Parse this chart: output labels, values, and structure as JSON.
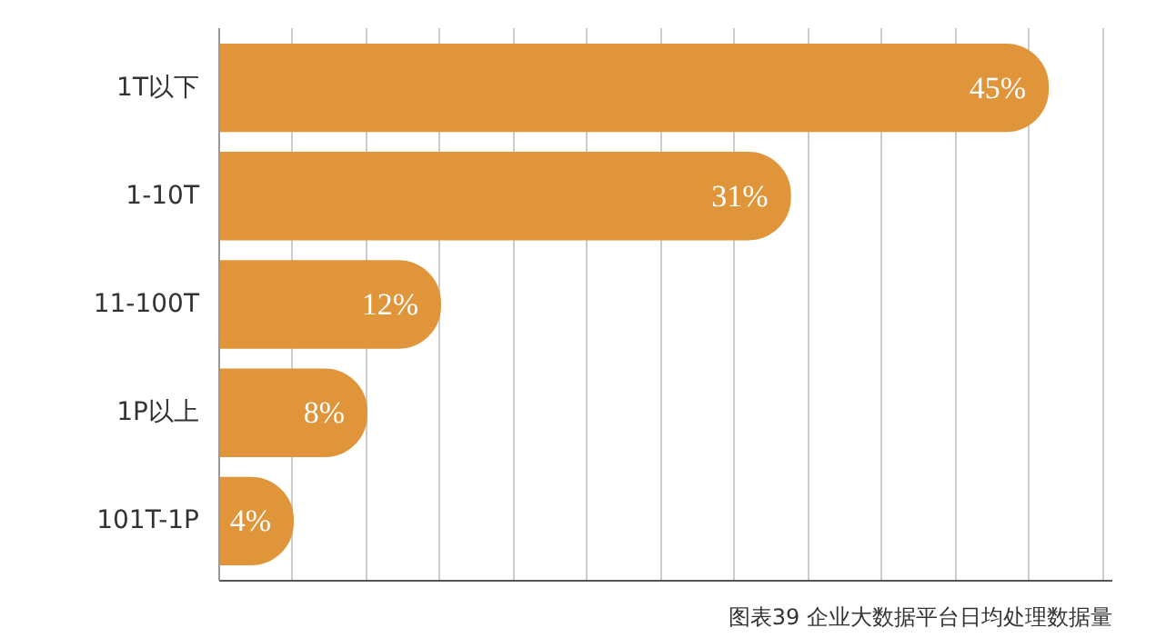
{
  "chart_data": {
    "type": "bar",
    "orientation": "horizontal",
    "categories": [
      "1T以下",
      "1-10T",
      "11-100T",
      "1P以上",
      "101T-1P"
    ],
    "values": [
      45,
      31,
      12,
      8,
      4
    ],
    "color": "#e0953a",
    "data_labels": true,
    "value_labels": [
      "45%",
      "31%",
      "12%",
      "8%",
      "4%"
    ],
    "xlim": [
      0,
      48.5
    ],
    "xticks": [
      {
        "value": 0,
        "label": null
      },
      {
        "value": 4,
        "label": null
      },
      {
        "value": 8,
        "label": null
      },
      {
        "value": 12,
        "label": null
      },
      {
        "value": 16,
        "label": null
      },
      {
        "value": 20,
        "label": null
      },
      {
        "value": 24,
        "label": null
      },
      {
        "value": 28,
        "label": null
      },
      {
        "value": 32,
        "label": null
      },
      {
        "value": 36,
        "label": null
      },
      {
        "value": 40,
        "label": null
      },
      {
        "value": 44,
        "label": null
      },
      {
        "value": 48,
        "label": null
      }
    ],
    "grid": "x",
    "annotations": [
      "图表39 企业大数据平台日均处理数据量"
    ]
  }
}
